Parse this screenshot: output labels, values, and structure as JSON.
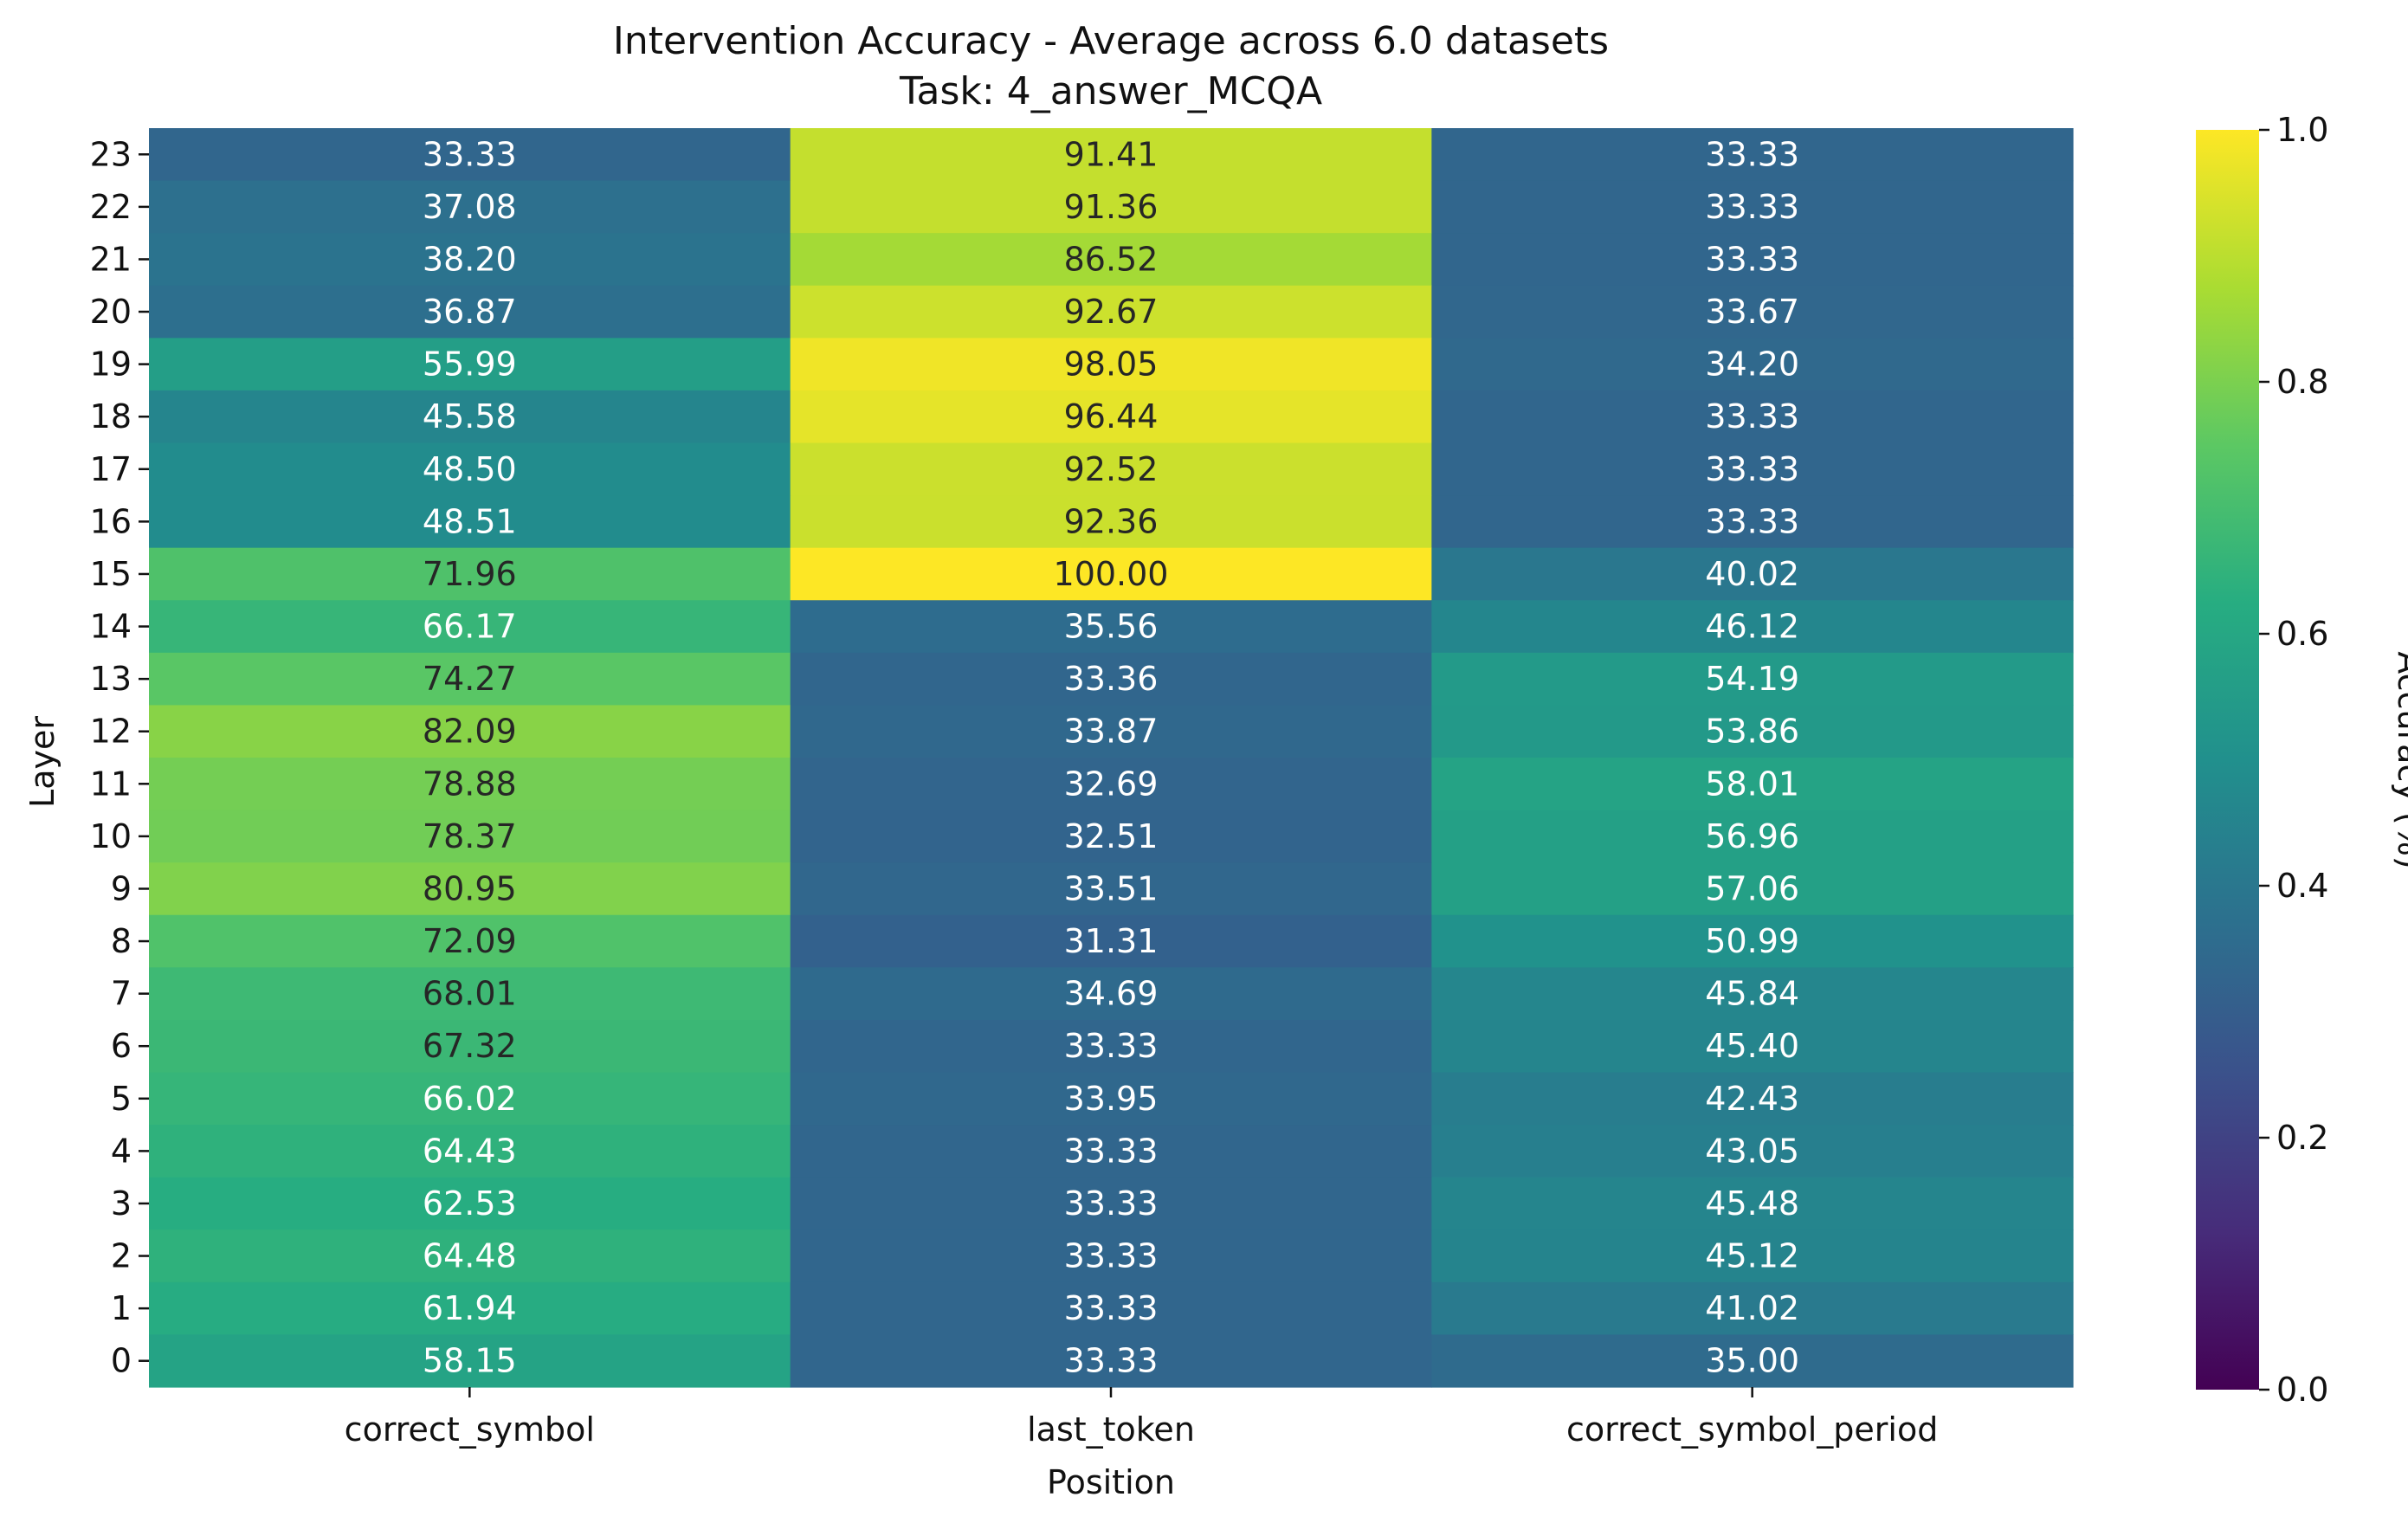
{
  "chart_data": {
    "type": "heatmap",
    "title": "Intervention Accuracy - Average across 6.0 datasets",
    "subtitle": "Task: 4_answer_MCQA",
    "xlabel": "Position",
    "ylabel": "Layer",
    "colorbar_label": "Accuracy (%)",
    "colormap": "viridis",
    "vmin": 0.0,
    "vmax": 1.0,
    "colorbar_ticks": [
      "0.0",
      "0.2",
      "0.4",
      "0.6",
      "0.8",
      "1.0"
    ],
    "columns": [
      "correct_symbol",
      "last_token",
      "correct_symbol_period"
    ],
    "rows": [
      "23",
      "22",
      "21",
      "20",
      "19",
      "18",
      "17",
      "16",
      "15",
      "14",
      "13",
      "12",
      "11",
      "10",
      "9",
      "8",
      "7",
      "6",
      "5",
      "4",
      "3",
      "2",
      "1",
      "0"
    ],
    "values": [
      [
        33.33,
        91.41,
        33.33
      ],
      [
        37.08,
        91.36,
        33.33
      ],
      [
        38.2,
        86.52,
        33.33
      ],
      [
        36.87,
        92.67,
        33.67
      ],
      [
        55.99,
        98.05,
        34.2
      ],
      [
        45.58,
        96.44,
        33.33
      ],
      [
        48.5,
        92.52,
        33.33
      ],
      [
        48.51,
        92.36,
        33.33
      ],
      [
        71.96,
        100.0,
        40.02
      ],
      [
        66.17,
        35.56,
        46.12
      ],
      [
        74.27,
        33.36,
        54.19
      ],
      [
        82.09,
        33.87,
        53.86
      ],
      [
        78.88,
        32.69,
        58.01
      ],
      [
        78.37,
        32.51,
        56.96
      ],
      [
        80.95,
        33.51,
        57.06
      ],
      [
        72.09,
        31.31,
        50.99
      ],
      [
        68.01,
        34.69,
        45.84
      ],
      [
        67.32,
        33.33,
        45.4
      ],
      [
        66.02,
        33.95,
        42.43
      ],
      [
        64.43,
        33.33,
        43.05
      ],
      [
        62.53,
        33.33,
        45.48
      ],
      [
        64.48,
        33.33,
        45.12
      ],
      [
        61.94,
        33.33,
        41.02
      ],
      [
        58.15,
        33.33,
        35.0
      ]
    ]
  }
}
